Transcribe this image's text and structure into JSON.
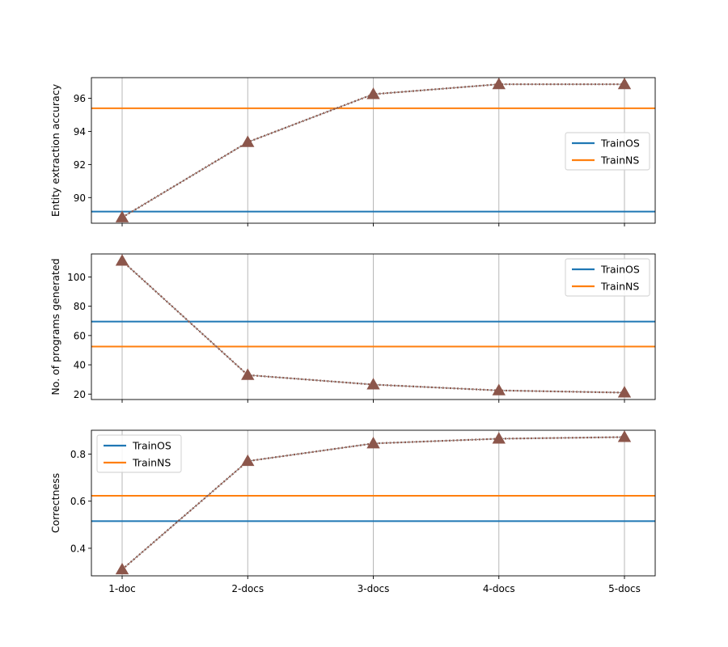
{
  "colors": {
    "train_os": "#1f77b4",
    "train_ns": "#ff7f0e",
    "series": "#8c564b",
    "dotted_line": "#555555",
    "grid": "#b0b0b0"
  },
  "chart_data": [
    {
      "type": "line",
      "categories": [
        "1-doc",
        "2-docs",
        "3-docs",
        "4-docs",
        "5-docs"
      ],
      "values": [
        88.8,
        93.35,
        96.25,
        96.85,
        96.85
      ],
      "ylabel": "Entity extraction accuracy",
      "ylim": [
        88.45,
        97.25
      ],
      "yticks": [
        90,
        92,
        94,
        96
      ],
      "hlines": [
        {
          "name": "TrainOS",
          "value": 89.15
        },
        {
          "name": "TrainNS",
          "value": 95.4
        }
      ],
      "legend": {
        "position": "center-right",
        "entries": [
          "TrainOS",
          "TrainNS"
        ]
      },
      "show_xticklabels": false
    },
    {
      "type": "line",
      "categories": [
        "1-doc",
        "2-docs",
        "3-docs",
        "4-docs",
        "5-docs"
      ],
      "values": [
        111,
        33,
        26.5,
        22.5,
        21
      ],
      "ylabel": "No. of programs generated",
      "ylim": [
        16.3,
        115.7
      ],
      "yticks": [
        20,
        40,
        60,
        80,
        100
      ],
      "hlines": [
        {
          "name": "TrainOS",
          "value": 69.5
        },
        {
          "name": "TrainNS",
          "value": 52.5
        }
      ],
      "legend": {
        "position": "top-right",
        "entries": [
          "TrainOS",
          "TrainNS"
        ]
      },
      "show_xticklabels": false
    },
    {
      "type": "line",
      "categories": [
        "1-doc",
        "2-docs",
        "3-docs",
        "4-docs",
        "5-docs"
      ],
      "values": [
        0.31,
        0.77,
        0.845,
        0.865,
        0.872
      ],
      "ylabel": "Correctness",
      "ylim": [
        0.283,
        0.901
      ],
      "yticks": [
        0.4,
        0.6,
        0.8
      ],
      "ytick_labels": [
        "0.4",
        "0.6",
        "0.8"
      ],
      "hlines": [
        {
          "name": "TrainOS",
          "value": 0.515
        },
        {
          "name": "TrainNS",
          "value": 0.623
        }
      ],
      "legend": {
        "position": "top-left",
        "entries": [
          "TrainOS",
          "TrainNS"
        ]
      },
      "show_xticklabels": true
    }
  ]
}
